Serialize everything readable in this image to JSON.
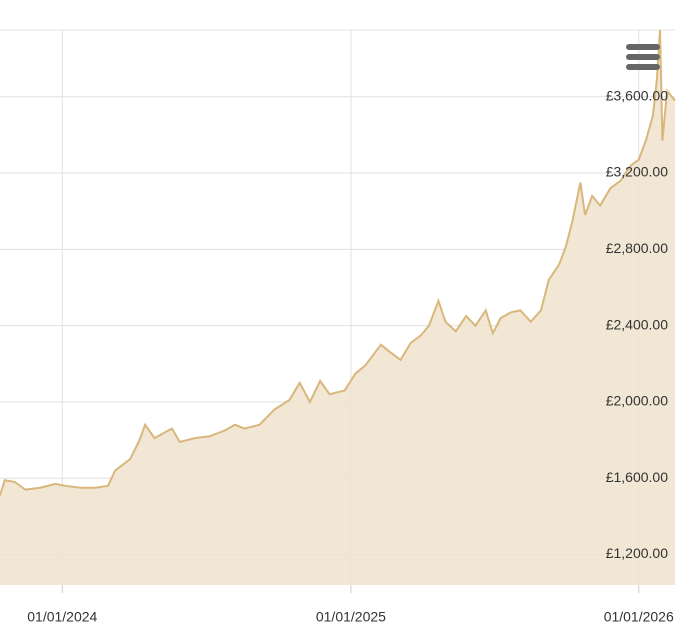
{
  "chart_data": {
    "type": "area",
    "x": [
      "2023-10-14",
      "2023-10-20",
      "2023-11-02",
      "2023-11-15",
      "2023-12-04",
      "2023-12-23",
      "2024-01-05",
      "2024-01-24",
      "2024-02-12",
      "2024-02-28",
      "2024-03-08",
      "2024-03-27",
      "2024-04-08",
      "2024-04-15",
      "2024-04-27",
      "2024-05-10",
      "2024-05-19",
      "2024-05-29",
      "2024-06-17",
      "2024-07-06",
      "2024-07-25",
      "2024-08-07",
      "2024-08-19",
      "2024-09-07",
      "2024-09-26",
      "2024-10-15",
      "2024-10-28",
      "2024-11-10",
      "2024-11-23",
      "2024-12-05",
      "2024-12-24",
      "2025-01-07",
      "2025-01-19",
      "2025-02-08",
      "2025-02-20",
      "2025-03-05",
      "2025-03-18",
      "2025-03-31",
      "2025-04-10",
      "2025-04-22",
      "2025-05-01",
      "2025-05-14",
      "2025-05-27",
      "2025-06-08",
      "2025-06-21",
      "2025-06-30",
      "2025-07-10",
      "2025-07-23",
      "2025-08-04",
      "2025-08-17",
      "2025-08-30",
      "2025-09-09",
      "2025-09-22",
      "2025-10-01",
      "2025-10-09",
      "2025-10-19",
      "2025-10-25",
      "2025-11-03",
      "2025-11-13",
      "2025-11-26",
      "2025-12-09",
      "2025-12-22",
      "2026-01-01",
      "2026-01-10",
      "2026-01-19",
      "2026-01-24",
      "2026-01-28",
      "2026-01-31",
      "2026-02-06",
      "2026-02-16"
    ],
    "values": [
      1510,
      1590,
      1580,
      1540,
      1550,
      1570,
      1560,
      1550,
      1550,
      1560,
      1640,
      1700,
      1800,
      1880,
      1810,
      1840,
      1860,
      1790,
      1810,
      1820,
      1850,
      1880,
      1860,
      1880,
      1960,
      2010,
      2100,
      2000,
      2110,
      2040,
      2060,
      2150,
      2190,
      2300,
      2260,
      2220,
      2310,
      2350,
      2400,
      2530,
      2420,
      2370,
      2450,
      2400,
      2480,
      2360,
      2440,
      2470,
      2480,
      2420,
      2480,
      2640,
      2720,
      2820,
      2950,
      3150,
      2980,
      3080,
      3030,
      3120,
      3160,
      3240,
      3270,
      3370,
      3500,
      3690,
      3950,
      3370,
      3630,
      3580
    ],
    "color": "#d9b77c",
    "fill_color": "#efe3cc",
    "xlim": [
      "2023-10-14",
      "2026-02-16"
    ],
    "xticks": [
      {
        "value": "2024-01-01",
        "label": "01/01/2024"
      },
      {
        "value": "2025-01-01",
        "label": "01/01/2025"
      },
      {
        "value": "2026-01-01",
        "label": "01/01/2026"
      }
    ],
    "ylim": [
      1040,
      3950
    ],
    "yticks": [
      {
        "value": 1200,
        "label": "£1,200.00"
      },
      {
        "value": 1600,
        "label": "£1,600.00"
      },
      {
        "value": 2000,
        "label": "£2,000.00"
      },
      {
        "value": 2400,
        "label": "£2,400.00"
      },
      {
        "value": 2800,
        "label": "£2,800.00"
      },
      {
        "value": 3200,
        "label": "£3,200.00"
      },
      {
        "value": 3600,
        "label": "£3,600.00"
      }
    ],
    "grid": true
  }
}
